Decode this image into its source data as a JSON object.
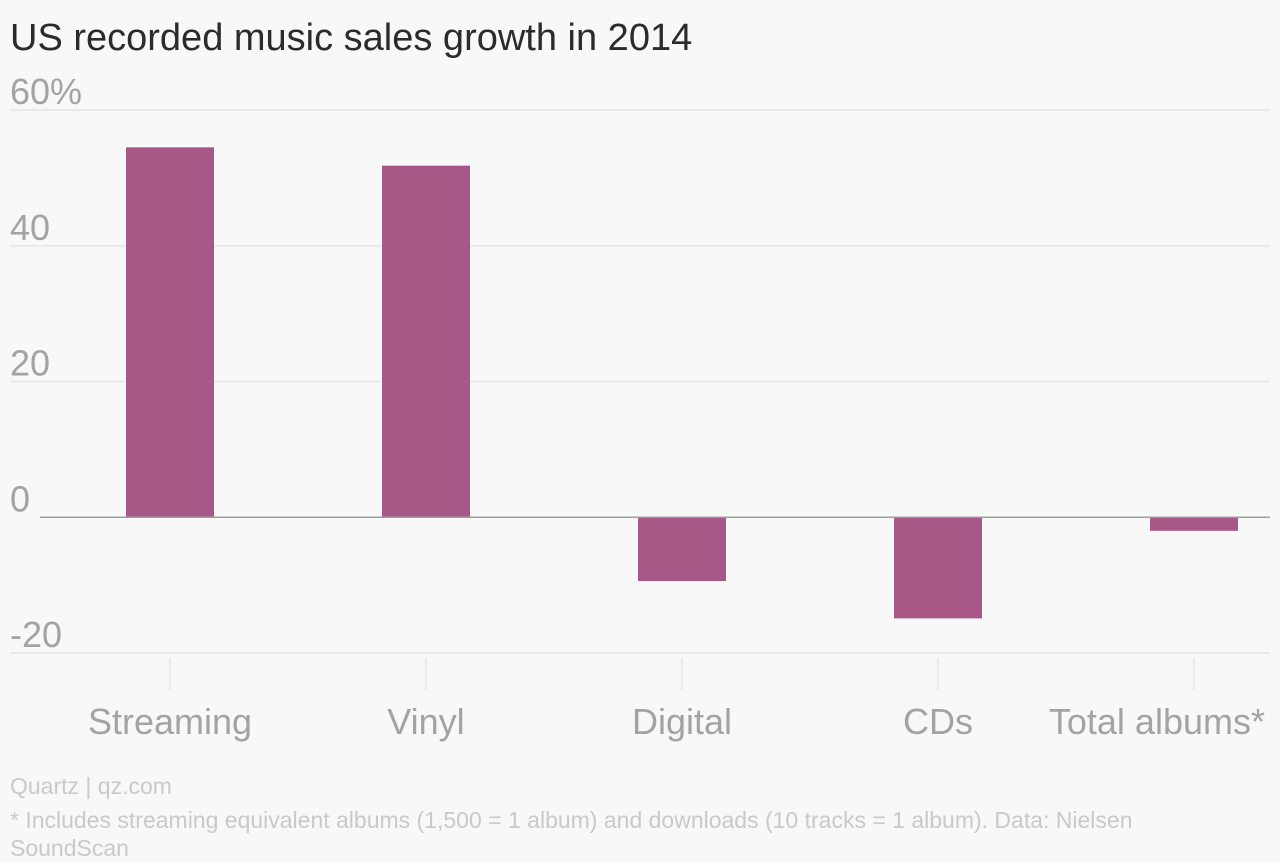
{
  "header": {
    "title": "US recorded music sales growth in 2014"
  },
  "footer": {
    "credit": "Quartz | qz.com",
    "note": "* Includes streaming equivalent albums (1,500 = 1 album) and downloads (10 tracks = 1 album). Data: Nielsen SoundScan"
  },
  "colors": {
    "bar": "#a85887",
    "grid": "#e6e6e6",
    "zero_line": "#9e9e9e",
    "tick_text": "#a3a3a3"
  },
  "chart_data": {
    "type": "bar",
    "title": "US recorded music sales growth in 2014",
    "categories": [
      "Streaming",
      "Vinyl",
      "Digital",
      "CDs",
      "Total albums*"
    ],
    "values": [
      54.5,
      51.8,
      -9.4,
      -14.9,
      -2.0
    ],
    "ylim": [
      -20,
      60
    ],
    "yticks": [
      60,
      40,
      20,
      0,
      -20
    ],
    "ytick_labels": [
      "60%",
      "40",
      "20",
      "0",
      "-20"
    ],
    "grid": true,
    "legend": "none"
  }
}
